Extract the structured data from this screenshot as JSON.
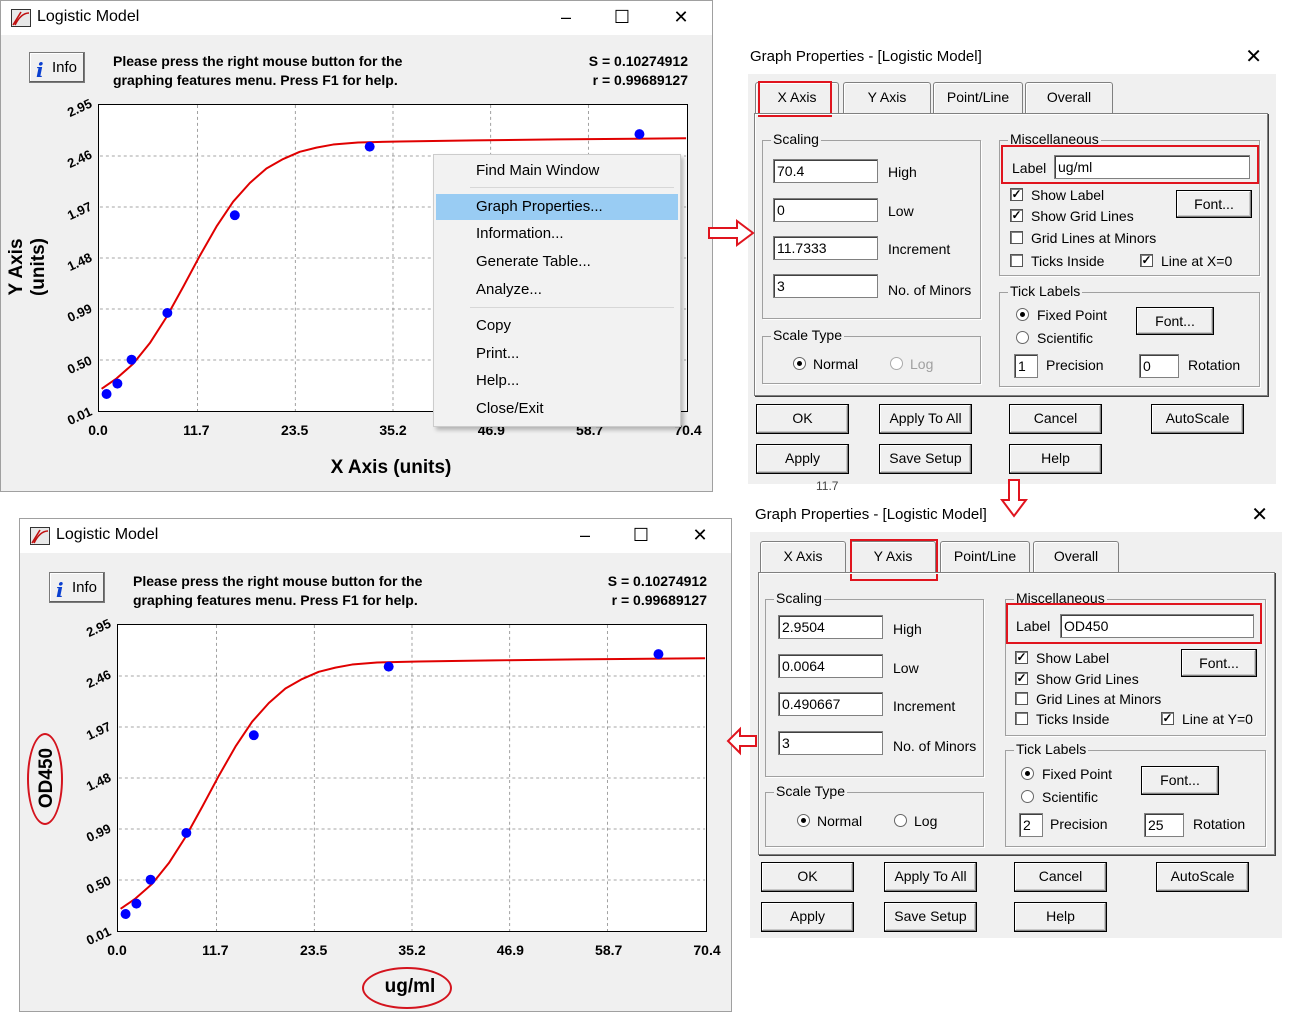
{
  "window_title": "Logistic Model",
  "info_label": "Info",
  "message_line1": "Please press the right mouse button for the",
  "message_line2": "graphing features menu.  Press F1 for help.",
  "stat_s": "S = 0.10274912",
  "stat_r": "r = 0.99689127",
  "top_chart": {
    "y_title": "Y Axis (units)",
    "x_title": "X Axis (units)",
    "y_ticks": [
      "2.95",
      "2.46",
      "1.97",
      "1.48",
      "0.99",
      "0.50",
      "0.01"
    ],
    "x_ticks": [
      "0.0",
      "11.7",
      "23.5",
      "35.2",
      "46.9",
      "58.7",
      "70.4"
    ]
  },
  "bottom_chart": {
    "y_title": "OD450",
    "x_title": "ug/ml",
    "y_ticks": [
      "2.95",
      "2.46",
      "1.97",
      "1.48",
      "0.99",
      "0.50",
      "0.01"
    ],
    "x_ticks": [
      "0.0",
      "11.7",
      "23.5",
      "35.2",
      "46.9",
      "58.7",
      "70.4"
    ]
  },
  "chart_data": {
    "type": "scatter",
    "x_range": [
      0,
      70.4
    ],
    "y_range": [
      0.0064,
      2.9504
    ],
    "points": [
      [
        0.8,
        0.17
      ],
      [
        2.1,
        0.27
      ],
      [
        3.8,
        0.5
      ],
      [
        8.1,
        0.95
      ],
      [
        16.2,
        1.89
      ],
      [
        32.4,
        2.55
      ],
      [
        64.8,
        2.67
      ]
    ],
    "fit_curve": [
      [
        0.2,
        0.22
      ],
      [
        2,
        0.32
      ],
      [
        4,
        0.46
      ],
      [
        6,
        0.66
      ],
      [
        8,
        0.91
      ],
      [
        10,
        1.2
      ],
      [
        12,
        1.5
      ],
      [
        14,
        1.78
      ],
      [
        16,
        2.02
      ],
      [
        18,
        2.2
      ],
      [
        20,
        2.34
      ],
      [
        22,
        2.43
      ],
      [
        24,
        2.5
      ],
      [
        26,
        2.54
      ],
      [
        28,
        2.57
      ],
      [
        31,
        2.59
      ],
      [
        36,
        2.6
      ],
      [
        45,
        2.61
      ],
      [
        55,
        2.62
      ],
      [
        70.4,
        2.63
      ]
    ],
    "grid": true,
    "points_color": "#0000ff",
    "curve_color": "#e00000"
  },
  "context_menu": {
    "items": [
      "Find Main Window",
      "Graph Properties...",
      "Information...",
      "Generate Table...",
      "Analyze...",
      "Copy",
      "Print...",
      "Help...",
      "Close/Exit"
    ],
    "selected": "Graph Properties..."
  },
  "dialog_x": {
    "title": "Graph Properties - [Logistic Model]",
    "tabs": [
      "X Axis",
      "Y Axis",
      "Point/Line",
      "Overall"
    ],
    "active_tab": "X Axis",
    "scaling_label": "Scaling",
    "high": "70.4",
    "high_label": "High",
    "low": "0",
    "low_label": "Low",
    "increment": "11.7333",
    "increment_label": "Increment",
    "minors": "3",
    "minors_label": "No. of Minors",
    "scale_type_label": "Scale Type",
    "normal_label": "Normal",
    "log_label": "Log",
    "misc_label": "Miscellaneous",
    "label_label": "Label",
    "label_value": "ug/ml",
    "show_label": "Show Label",
    "show_grid": "Show Grid Lines",
    "grid_minors": "Grid Lines at Minors",
    "ticks_inside": "Ticks Inside",
    "line_at_zero": "Line at X=0",
    "font_label": "Font...",
    "tick_labels": "Tick Labels",
    "fixed_point": "Fixed Point",
    "scientific": "Scientific",
    "precision": "1",
    "precision_label": "Precision",
    "rotation": "0",
    "rotation_label": "Rotation",
    "buttons": [
      "OK",
      "Apply To All",
      "Cancel",
      "AutoScale",
      "Apply",
      "Save Setup",
      "Help"
    ],
    "stray_text": "11.7"
  },
  "dialog_y": {
    "title": "Graph Properties - [Logistic Model]",
    "tabs": [
      "X Axis",
      "Y Axis",
      "Point/Line",
      "Overall"
    ],
    "active_tab": "Y Axis",
    "scaling_label": "Scaling",
    "high": "2.9504",
    "high_label": "High",
    "low": "0.0064",
    "low_label": "Low",
    "increment": "0.490667",
    "increment_label": "Increment",
    "minors": "3",
    "minors_label": "No. of Minors",
    "scale_type_label": "Scale Type",
    "normal_label": "Normal",
    "log_label": "Log",
    "misc_label": "Miscellaneous",
    "label_label": "Label",
    "label_value": "OD450",
    "show_label": "Show Label",
    "show_grid": "Show Grid Lines",
    "grid_minors": "Grid Lines at Minors",
    "ticks_inside": "Ticks Inside",
    "line_at_zero": "Line at Y=0",
    "font_label": "Font...",
    "tick_labels": "Tick Labels",
    "fixed_point": "Fixed Point",
    "scientific": "Scientific",
    "precision": "2",
    "precision_label": "Precision",
    "rotation": "25",
    "rotation_label": "Rotation",
    "buttons": [
      "OK",
      "Apply To All",
      "Cancel",
      "AutoScale",
      "Apply",
      "Save Setup",
      "Help"
    ]
  },
  "colors": {
    "annotation_red": "#e0141e",
    "menu_highlight": "#99ccf3",
    "info_icon_blue": "#0a3fd0"
  }
}
